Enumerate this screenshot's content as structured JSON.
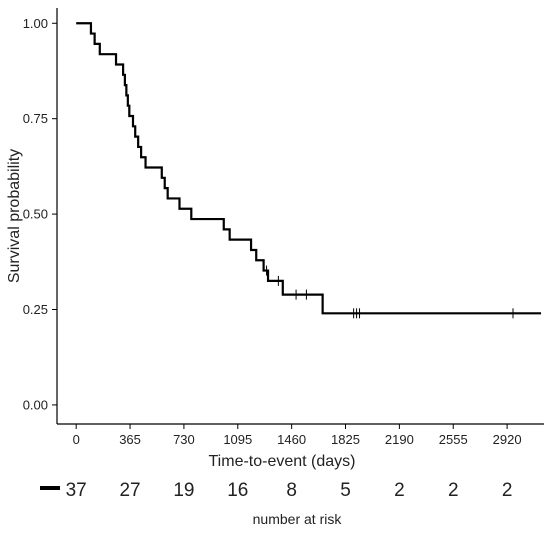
{
  "chart_data": {
    "type": "line",
    "title": "",
    "xlabel": "Time-to-event (days)",
    "ylabel": "Survival probability",
    "xlim": [
      -130,
      3170
    ],
    "ylim": [
      -0.05,
      1.04
    ],
    "grid": false,
    "x_ticks": [
      0,
      365,
      730,
      1095,
      1460,
      1825,
      2190,
      2555,
      2920
    ],
    "y_ticks": [
      0.0,
      0.25,
      0.5,
      0.75,
      1.0
    ],
    "y_tick_labels": [
      "0.00",
      "0.25",
      "0.50",
      "0.75",
      "1.00"
    ],
    "series": [
      {
        "color": "#000000",
        "step": [
          [
            0,
            1.0
          ],
          [
            100,
            0.973
          ],
          [
            125,
            0.946
          ],
          [
            160,
            0.919
          ],
          [
            270,
            0.892
          ],
          [
            318,
            0.865
          ],
          [
            330,
            0.838
          ],
          [
            340,
            0.811
          ],
          [
            350,
            0.784
          ],
          [
            360,
            0.757
          ],
          [
            385,
            0.73
          ],
          [
            400,
            0.703
          ],
          [
            420,
            0.676
          ],
          [
            440,
            0.649
          ],
          [
            470,
            0.622
          ],
          [
            580,
            0.595
          ],
          [
            600,
            0.568
          ],
          [
            620,
            0.541
          ],
          [
            700,
            0.514
          ],
          [
            780,
            0.487
          ],
          [
            1000,
            0.46
          ],
          [
            1040,
            0.433
          ],
          [
            1185,
            0.406
          ],
          [
            1220,
            0.379
          ],
          [
            1270,
            0.352
          ],
          [
            1300,
            0.325
          ],
          [
            1400,
            0.289
          ],
          [
            1670,
            0.24
          ],
          [
            3150,
            0.24
          ]
        ],
        "censored": [
          [
            1290,
            0.352
          ],
          [
            1370,
            0.325
          ],
          [
            1490,
            0.289
          ],
          [
            1560,
            0.289
          ],
          [
            1880,
            0.24
          ],
          [
            1900,
            0.24
          ],
          [
            1920,
            0.24
          ],
          [
            2960,
            0.24
          ]
        ]
      }
    ],
    "risk_table": {
      "title": "number at risk",
      "counts": [
        "37",
        "27",
        "19",
        "16",
        "8",
        "5",
        "2",
        "2",
        "2"
      ]
    }
  }
}
